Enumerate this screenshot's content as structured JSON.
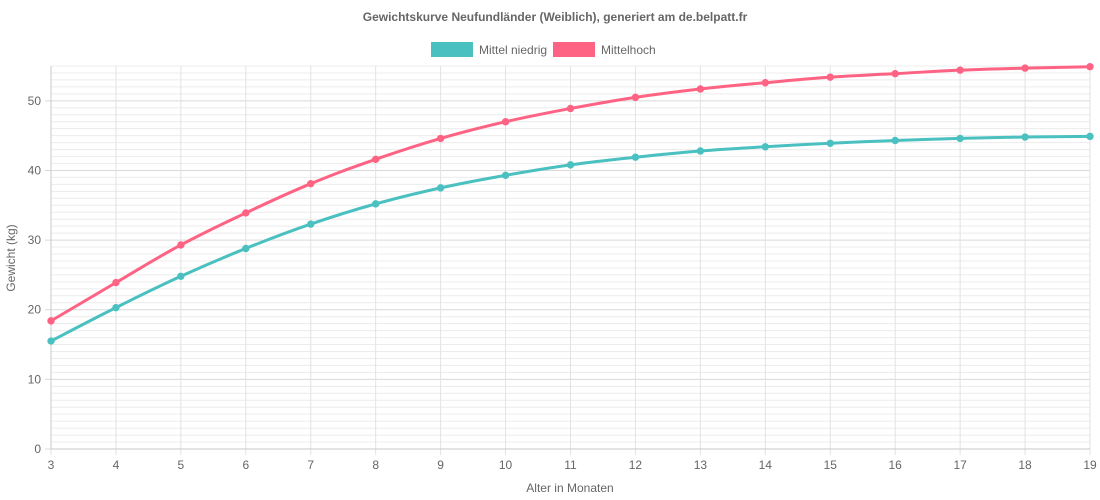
{
  "chart_data": {
    "type": "line",
    "title": "Gewichtskurve Neufundländer (Weiblich), generiert am de.belpatt.fr",
    "xlabel": "Alter in Monaten",
    "ylabel": "Gewicht (kg)",
    "x": [
      3,
      4,
      5,
      6,
      7,
      8,
      9,
      10,
      11,
      12,
      13,
      14,
      15,
      16,
      17,
      18,
      19
    ],
    "ylim": [
      0,
      55
    ],
    "yticks": [
      0,
      10,
      20,
      30,
      40,
      50
    ],
    "grid": true,
    "legend_position": "top",
    "series": [
      {
        "name": "Mittel niedrig",
        "color": "#4bc0c0",
        "values": [
          15.5,
          20.3,
          24.8,
          28.8,
          32.3,
          35.2,
          37.5,
          39.3,
          40.8,
          41.9,
          42.8,
          43.4,
          43.9,
          44.3,
          44.6,
          44.8,
          44.9
        ]
      },
      {
        "name": "Mittelhoch",
        "color": "#ff6384",
        "values": [
          18.4,
          23.9,
          29.3,
          33.9,
          38.1,
          41.6,
          44.6,
          47.0,
          48.9,
          50.5,
          51.7,
          52.6,
          53.4,
          53.9,
          54.4,
          54.7,
          54.9
        ]
      }
    ]
  }
}
